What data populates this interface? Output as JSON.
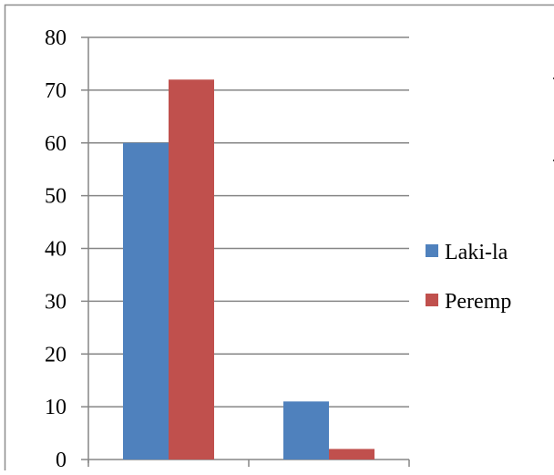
{
  "chart_data": {
    "type": "bar",
    "categories": [
      "",
      ""
    ],
    "series": [
      {
        "name": "Laki-la",
        "color": "#4F81BD",
        "values": [
          60,
          11
        ]
      },
      {
        "name": "Peremp",
        "color": "#C0504D",
        "values": [
          72,
          2
        ]
      }
    ],
    "y_ticks": [
      "0",
      "10",
      "20",
      "30",
      "40",
      "50",
      "60",
      "70",
      "80"
    ],
    "ylim": [
      0,
      80
    ],
    "grid": true,
    "legend_position": "right",
    "title": "",
    "xlabel": "",
    "ylabel": ""
  }
}
